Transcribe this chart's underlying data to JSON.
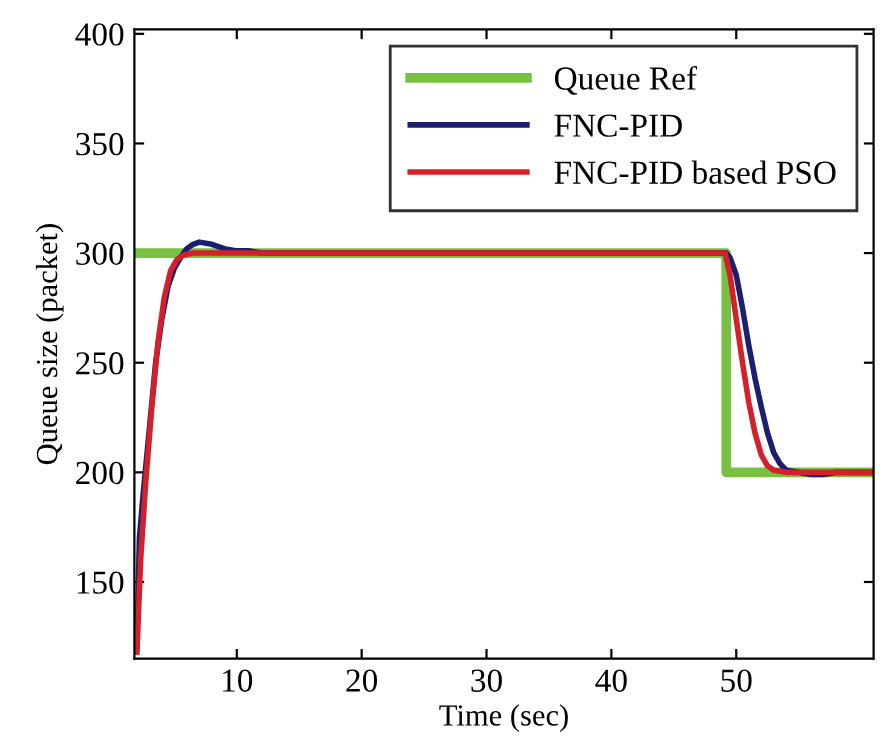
{
  "chart_data": {
    "type": "line",
    "xlabel": "Time (sec)",
    "ylabel": "Queue size (packet)",
    "xlim": [
      1.8,
      61
    ],
    "ylim": [
      115,
      402
    ],
    "xticks": [
      10,
      20,
      30,
      40,
      50
    ],
    "yticks": [
      150,
      200,
      250,
      300,
      350,
      400
    ],
    "grid": false,
    "legend": "top right",
    "marker": "none",
    "line_style": "solid",
    "series": [
      {
        "name": "Queue Ref",
        "color": "#77c043",
        "x": [
          1.8,
          49.2,
          49.2,
          61
        ],
        "values": [
          300,
          300,
          200,
          200
        ]
      },
      {
        "name": "FNC-PID",
        "color": "#1a1f6e",
        "x": [
          2,
          2.2,
          2.5,
          3,
          3.5,
          4,
          4.5,
          5,
          5.5,
          6,
          6.5,
          7,
          8,
          9,
          10,
          11,
          12,
          49.2,
          49.5,
          50,
          50.5,
          51,
          51.5,
          52,
          52.5,
          53,
          53.5,
          54,
          55,
          56,
          57,
          58,
          61
        ],
        "values": [
          120,
          170,
          190,
          220,
          250,
          270,
          285,
          293,
          298,
          302,
          304,
          305,
          304,
          302,
          301,
          301,
          300,
          300,
          298,
          290,
          275,
          258,
          243,
          230,
          218,
          209,
          204,
          201,
          200,
          199,
          199,
          200,
          200
        ]
      },
      {
        "name": "FNC-PID based PSO",
        "color": "#d4202a",
        "x": [
          2,
          2.3,
          2.7,
          3.2,
          3.7,
          4.2,
          4.7,
          5.2,
          5.7,
          6.5,
          49.1,
          49.5,
          50,
          50.5,
          51,
          51.5,
          52,
          52.5,
          53,
          54,
          61
        ],
        "values": [
          118,
          160,
          195,
          230,
          260,
          280,
          292,
          297,
          299,
          300,
          300,
          290,
          270,
          250,
          232,
          218,
          208,
          203,
          201,
          200,
          200
        ]
      }
    ]
  }
}
